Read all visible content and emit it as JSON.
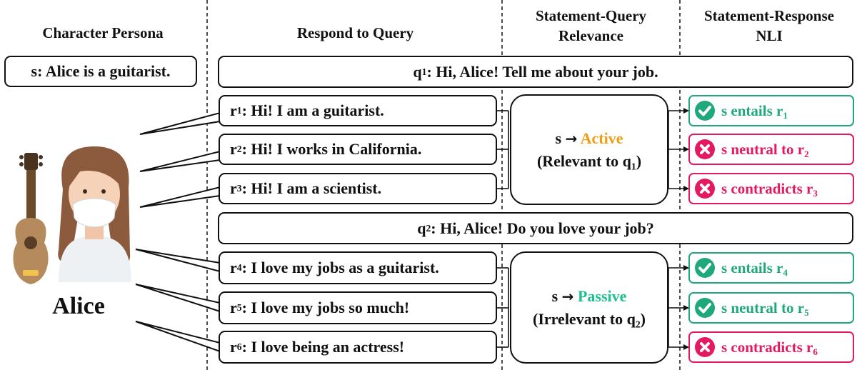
{
  "headers": {
    "persona": "Character Persona",
    "respond": "Respond to Query",
    "relevance_line1": "Statement-Query",
    "relevance_line2": "Relevance",
    "nli_line1": "Statement-Response",
    "nli_line2": "NLI"
  },
  "persona": {
    "statement": "s: Alice is a guitarist.",
    "name": "Alice",
    "avatar_icon": "guitarist-avatar-icon"
  },
  "queries": [
    {
      "label": "q",
      "sub": "1",
      "text": ": Hi, Alice! Tell me about your job."
    },
    {
      "label": "q",
      "sub": "2",
      "text": ": Hi, Alice! Do you love your job?"
    }
  ],
  "responses": [
    {
      "label": "r",
      "sub": "1",
      "text": ": Hi! I am a guitarist."
    },
    {
      "label": "r",
      "sub": "2",
      "text": ": Hi! I works in California."
    },
    {
      "label": "r",
      "sub": "3",
      "text": ": Hi! I am a scientist."
    },
    {
      "label": "r",
      "sub": "4",
      "text": ": I love my jobs as a guitarist."
    },
    {
      "label": "r",
      "sub": "5",
      "text": ": I love my jobs so much!"
    },
    {
      "label": "r",
      "sub": "6",
      "text": ": I love being an actress!"
    }
  ],
  "relevance": [
    {
      "prefix": "s",
      "arrow": "→",
      "status": "Active",
      "status_color": "#f29c11",
      "desc": "(Relevant to q",
      "desc_sub": "1",
      "desc_end": ")"
    },
    {
      "prefix": "s",
      "arrow": "→",
      "status": "Passive",
      "status_color": "#1fbf8f",
      "desc": "(Irrelevant to q",
      "desc_sub": "2",
      "desc_end": ")"
    }
  ],
  "nli": [
    {
      "text": "s entails r",
      "sub": "1",
      "kind": "check",
      "color": "#1fa97a"
    },
    {
      "text": "s neutral to r",
      "sub": "2",
      "kind": "cross",
      "color": "#e5195f"
    },
    {
      "text": "s contradicts r",
      "sub": "3",
      "kind": "cross",
      "color": "#e5195f"
    },
    {
      "text": "s entails r",
      "sub": "4",
      "kind": "check",
      "color": "#1fa97a"
    },
    {
      "text": "s neutral to r",
      "sub": "5",
      "kind": "check",
      "color": "#1fa97a"
    },
    {
      "text": "s contradicts r",
      "sub": "6",
      "kind": "cross",
      "color": "#e5195f"
    }
  ]
}
